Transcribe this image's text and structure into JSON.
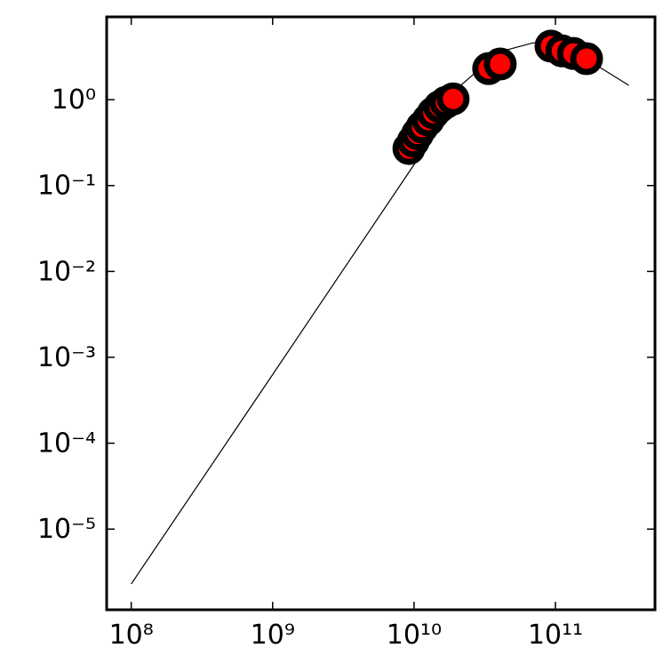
{
  "chart_data": {
    "type": "scatter",
    "xscale": "log",
    "yscale": "log",
    "xlim": [
      67000000,
      506000000000
    ],
    "ylim": [
      1.15e-06,
      9.2
    ],
    "xticks": [
      {
        "value": 100000000,
        "label": "10⁸"
      },
      {
        "value": 1000000000,
        "label": "10⁹"
      },
      {
        "value": 10000000000,
        "label": "10¹⁰"
      },
      {
        "value": 100000000000,
        "label": "10¹¹"
      }
    ],
    "yticks": [
      {
        "value": 1e-05,
        "label": "10⁻⁵"
      },
      {
        "value": 0.0001,
        "label": "10⁻⁴"
      },
      {
        "value": 0.001,
        "label": "10⁻³"
      },
      {
        "value": 0.01,
        "label": "10⁻²"
      },
      {
        "value": 0.1,
        "label": "10⁻¹"
      },
      {
        "value": 1,
        "label": "10⁰"
      }
    ],
    "series": [
      {
        "type": "line",
        "color": "#000000",
        "x": [
          100000000,
          1000000000,
          10000000000,
          20000000000,
          40000000000,
          70000000000,
          150000000000,
          330000000000
        ],
        "values": [
          2.3e-06,
          0.00063,
          0.175,
          1.33,
          3.6,
          4.6,
          3.3,
          1.47
        ]
      },
      {
        "type": "scatter",
        "color": "#ff0000",
        "edgecolor": "#000000",
        "x": [
          9200000000,
          9900000000,
          10600000000,
          11400000000,
          12600000000,
          13700000000,
          15200000000,
          16800000000,
          18900000000,
          33700000000,
          40700000000,
          93000000000,
          111000000000,
          134000000000,
          166000000000
        ],
        "values": [
          0.27,
          0.33,
          0.4,
          0.48,
          0.58,
          0.7,
          0.83,
          0.93,
          1.02,
          2.3,
          2.6,
          4.2,
          3.7,
          3.45,
          3.0
        ]
      }
    ]
  }
}
